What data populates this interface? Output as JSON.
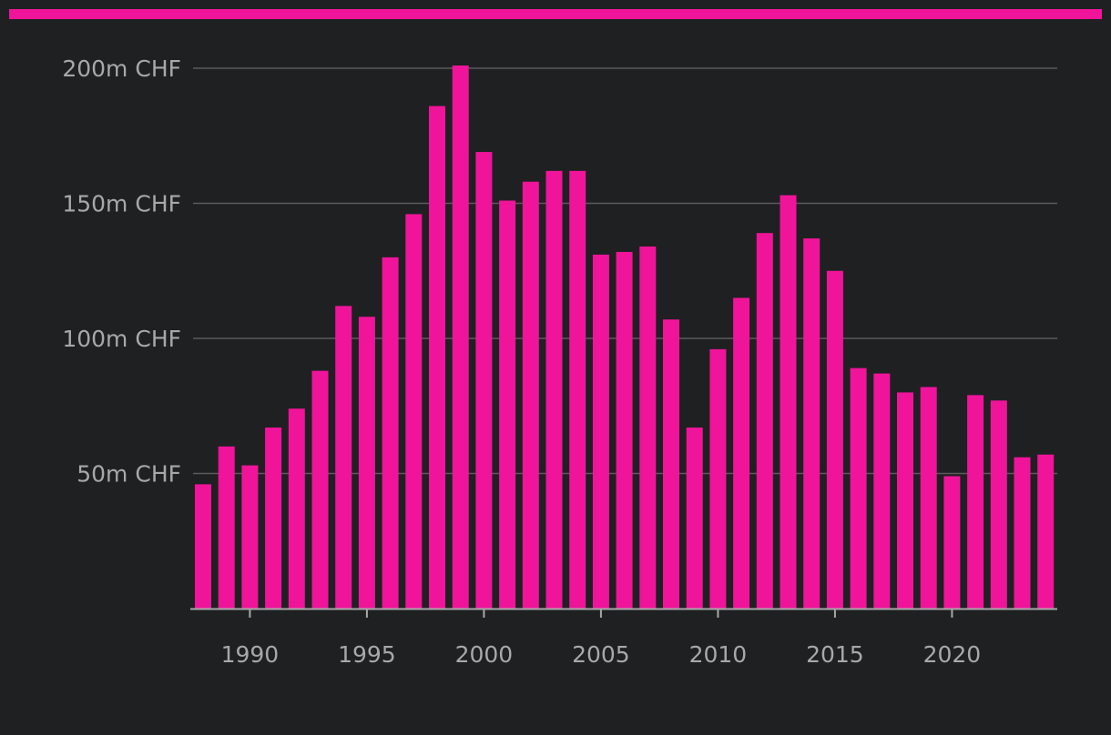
{
  "colors": {
    "background": "#1f2022",
    "accent": "#f0149a",
    "bar": "#f0149a",
    "grid": "#5a5b5d",
    "axis": "#a8a8a8",
    "text": "#a8a8a8"
  },
  "chart_data": {
    "type": "bar",
    "title": "",
    "xlabel": "",
    "ylabel": "",
    "ylim": [
      0,
      200
    ],
    "grid": true,
    "legend": "none",
    "y_ticks": [
      {
        "value": 50,
        "label": "50m CHF"
      },
      {
        "value": 100,
        "label": "100m CHF"
      },
      {
        "value": 150,
        "label": "150m CHF"
      },
      {
        "value": 200,
        "label": "200m CHF"
      }
    ],
    "x_ticks": [
      {
        "value": 1990,
        "label": "1990"
      },
      {
        "value": 1995,
        "label": "1995"
      },
      {
        "value": 2000,
        "label": "2000"
      },
      {
        "value": 2005,
        "label": "2005"
      },
      {
        "value": 2010,
        "label": "2010"
      },
      {
        "value": 2015,
        "label": "2015"
      },
      {
        "value": 2020,
        "label": "2020"
      }
    ],
    "categories": [
      1988,
      1989,
      1990,
      1991,
      1992,
      1993,
      1994,
      1995,
      1996,
      1997,
      1998,
      1999,
      2000,
      2001,
      2002,
      2003,
      2004,
      2005,
      2006,
      2007,
      2008,
      2009,
      2010,
      2011,
      2012,
      2013,
      2014,
      2015,
      2016,
      2017,
      2018,
      2019,
      2020,
      2021,
      2022,
      2023,
      2024
    ],
    "values": [
      46,
      60,
      53,
      67,
      74,
      88,
      112,
      108,
      130,
      146,
      186,
      201,
      169,
      151,
      158,
      162,
      162,
      131,
      132,
      134,
      107,
      67,
      96,
      115,
      139,
      153,
      137,
      125,
      89,
      87,
      80,
      82,
      49,
      79,
      77,
      56,
      57
    ]
  }
}
